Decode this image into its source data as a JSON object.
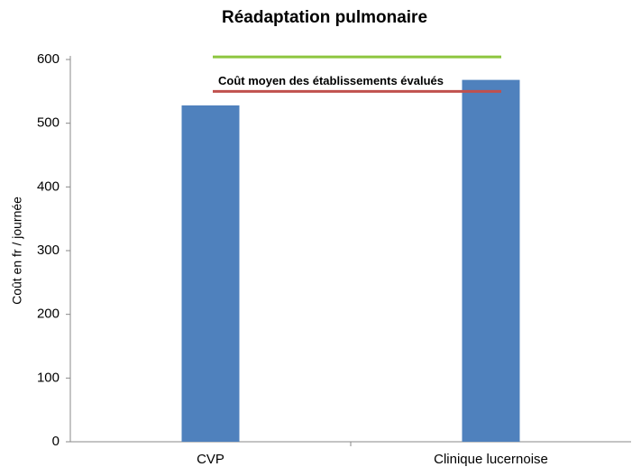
{
  "chart_data": {
    "type": "bar",
    "title": "Réadaptation pulmonaire",
    "y_label": "Coût en fr / journée",
    "categories": [
      "CVP",
      "Clinique lucernoise"
    ],
    "values": [
      528,
      568
    ],
    "color": "#4f81bd",
    "ylim": [
      0,
      600
    ],
    "yticks": [
      0,
      100,
      200,
      300,
      400,
      500,
      600
    ],
    "grid": false,
    "reference_lines": [
      {
        "value": 604,
        "color": "#8dc63f"
      },
      {
        "value": 550,
        "color": "#c0504d",
        "label": "Coût moyen des établissements évalués"
      }
    ]
  }
}
